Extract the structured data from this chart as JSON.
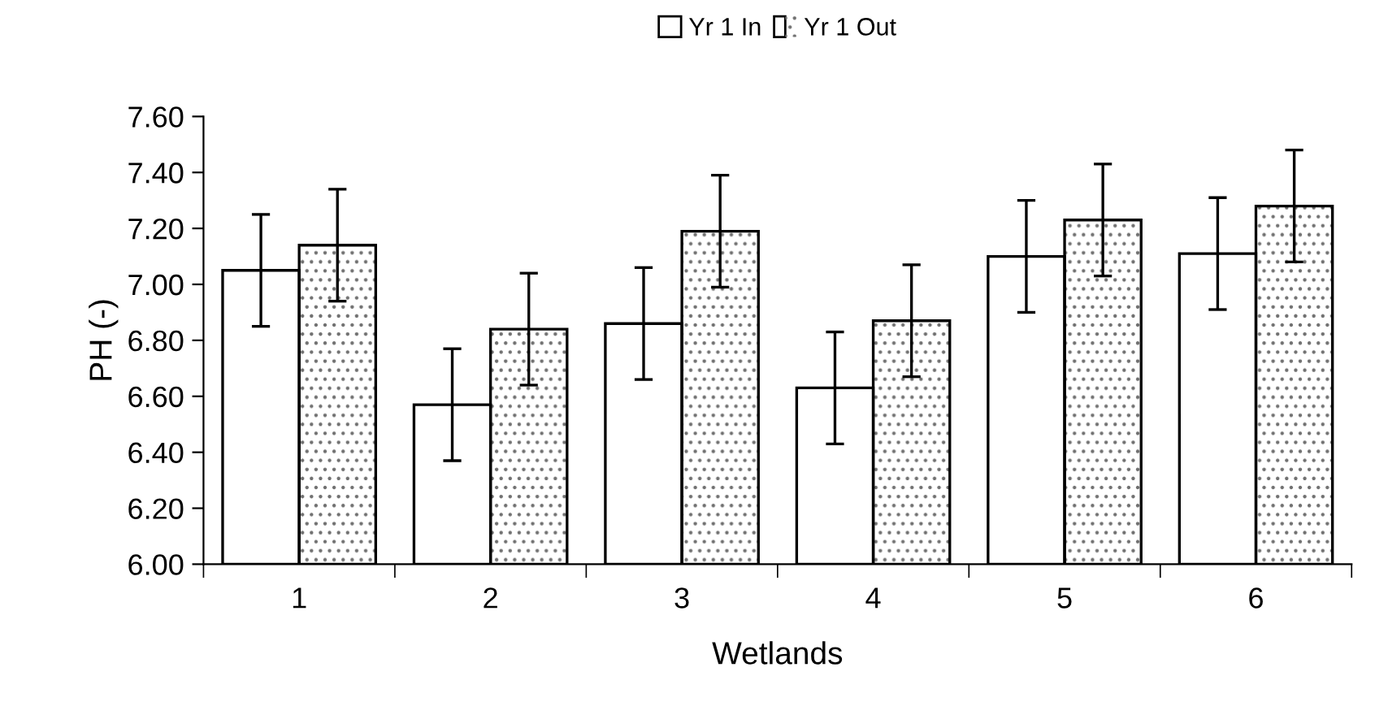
{
  "chart_data": {
    "type": "bar",
    "xlabel": "Wetlands",
    "ylabel": "PH (-)",
    "categories": [
      "1",
      "2",
      "3",
      "4",
      "5",
      "6"
    ],
    "series": [
      {
        "name": "Yr 1 In",
        "color": "#ffffff",
        "values": [
          7.05,
          6.57,
          6.86,
          6.63,
          7.1,
          7.11
        ],
        "errors": [
          0.2,
          0.2,
          0.2,
          0.2,
          0.2,
          0.2
        ]
      },
      {
        "name": "Yr 1 Out",
        "color": "#ffffff",
        "values": [
          7.14,
          6.84,
          7.19,
          6.87,
          7.23,
          7.28
        ],
        "errors": [
          0.2,
          0.2,
          0.2,
          0.2,
          0.2,
          0.2
        ]
      }
    ],
    "ylim": [
      6.0,
      7.6
    ],
    "yticks": [
      {
        "value": 6.0,
        "label": "6.00"
      },
      {
        "value": 6.2,
        "label": "6.20"
      },
      {
        "value": 6.4,
        "label": "6.40"
      },
      {
        "value": 6.6,
        "label": "6.60"
      },
      {
        "value": 6.8,
        "label": "6.80"
      },
      {
        "value": 7.0,
        "label": "7.00"
      },
      {
        "value": 7.2,
        "label": "7.20"
      },
      {
        "value": 7.4,
        "label": "7.40"
      },
      {
        "value": 7.6,
        "label": "7.60"
      }
    ],
    "grid": false,
    "legend": "top"
  }
}
